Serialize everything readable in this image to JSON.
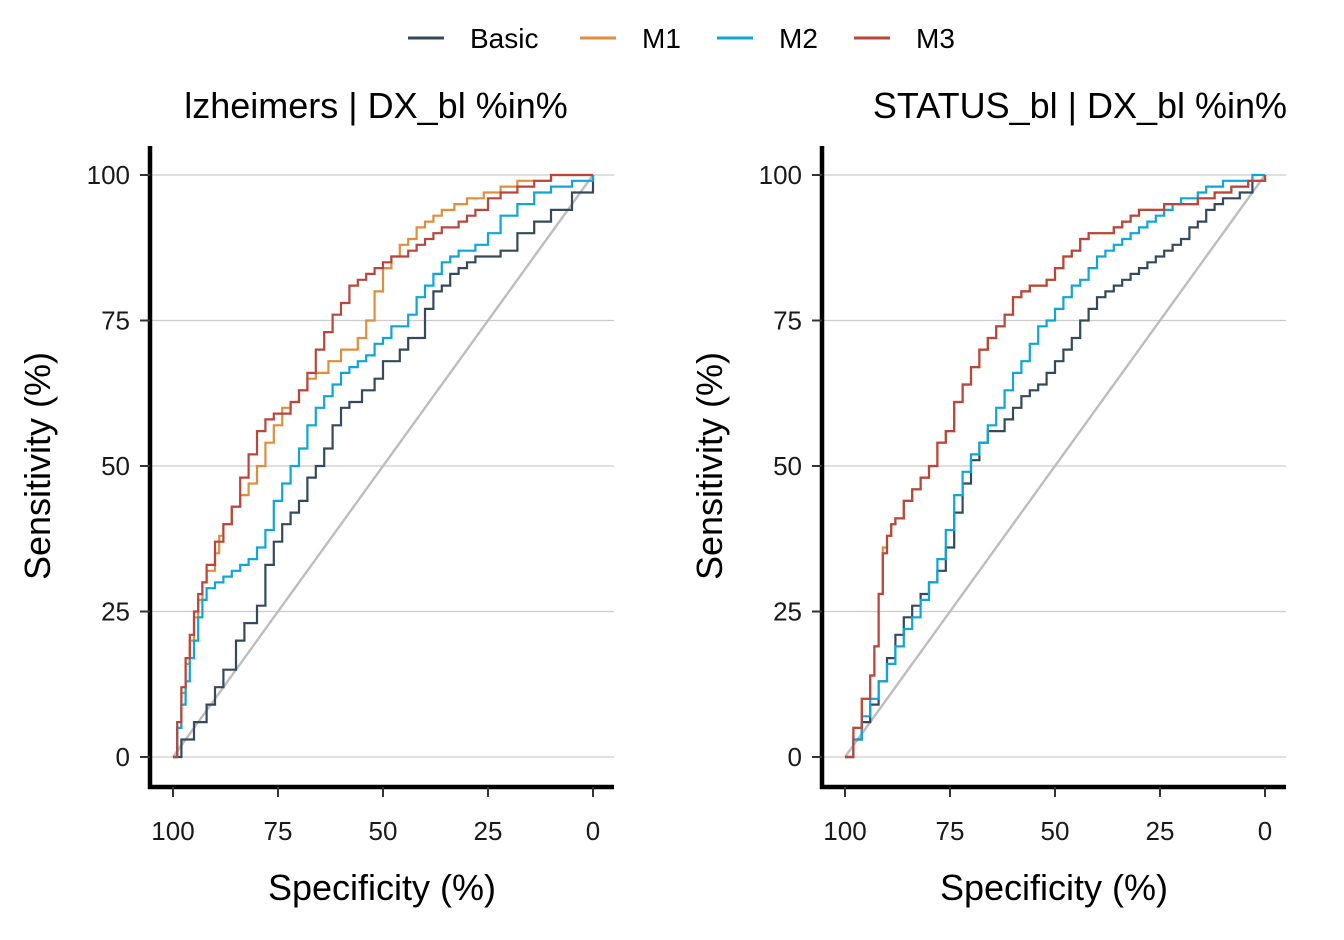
{
  "legend": {
    "items": [
      {
        "label": "Basic",
        "color": "#34495e"
      },
      {
        "label": "M1",
        "color": "#e08e3c"
      },
      {
        "label": "M2",
        "color": "#0ea5d8"
      },
      {
        "label": "M3",
        "color": "#b9453c"
      }
    ]
  },
  "chart_data": [
    {
      "type": "line",
      "title": "lzheimers | DX_bl %in%",
      "xlabel": "Specificity (%)",
      "ylabel": "Sensitivity (%)",
      "xlim": [
        100,
        0
      ],
      "ylim": [
        0,
        100
      ],
      "x_reversed": true,
      "xticks": [
        100,
        75,
        50,
        25,
        0
      ],
      "yticks": [
        0,
        25,
        50,
        75,
        100
      ],
      "grid": "horizontal",
      "reference_line": {
        "from": [
          100,
          0
        ],
        "to": [
          0,
          100
        ],
        "color": "#bdbdbd"
      },
      "series": [
        {
          "name": "Basic",
          "color": "#34495e",
          "x": [
            100,
            98,
            95,
            92,
            90,
            88,
            85,
            83,
            80,
            78,
            76,
            74,
            72,
            70,
            68,
            66,
            64,
            62,
            60,
            58,
            55,
            52,
            50,
            48,
            46,
            44,
            42,
            40,
            38,
            36,
            34,
            32,
            30,
            28,
            25,
            22,
            18,
            14,
            10,
            5,
            0
          ],
          "y": [
            0,
            3,
            6,
            9,
            12,
            15,
            20,
            23,
            26,
            33,
            37,
            40,
            42,
            44,
            48,
            50,
            53,
            57,
            60,
            61,
            63,
            65,
            68,
            68,
            70,
            72,
            72,
            77,
            80,
            81,
            83,
            84,
            85,
            86,
            86,
            87,
            90,
            92,
            94,
            97,
            100
          ]
        },
        {
          "name": "M1",
          "color": "#e08e3c",
          "x": [
            100,
            99,
            98,
            97,
            96,
            95,
            94,
            93,
            92,
            90,
            89,
            88,
            86,
            84,
            82,
            80,
            78,
            76,
            74,
            72,
            70,
            68,
            66,
            63,
            60,
            58,
            56,
            54,
            52,
            50,
            48,
            46,
            44,
            42,
            40,
            38,
            36,
            33,
            30,
            26,
            22,
            18,
            14,
            10,
            5,
            0
          ],
          "y": [
            0,
            5,
            11,
            16,
            20,
            24,
            27,
            30,
            32,
            35,
            38,
            40,
            43,
            45,
            47,
            50,
            54,
            57,
            60,
            61,
            63,
            65,
            66,
            68,
            70,
            70,
            72,
            75,
            80,
            84,
            86,
            88,
            89,
            91,
            92,
            93,
            94,
            95,
            96,
            97,
            98,
            99,
            99,
            100,
            100,
            100
          ]
        },
        {
          "name": "M2",
          "color": "#0ea5d8",
          "x": [
            100,
            99,
            98,
            97,
            96,
            95,
            94,
            93,
            92,
            90,
            88,
            86,
            84,
            82,
            80,
            78,
            76,
            74,
            72,
            70,
            68,
            66,
            64,
            62,
            60,
            58,
            56,
            54,
            52,
            50,
            48,
            46,
            44,
            42,
            40,
            38,
            36,
            34,
            32,
            30,
            28,
            25,
            22,
            18,
            14,
            10,
            5,
            0
          ],
          "y": [
            0,
            5,
            9,
            13,
            17,
            20,
            24,
            27,
            29,
            30,
            31,
            32,
            33,
            34,
            36,
            39,
            44,
            47,
            50,
            53,
            57,
            60,
            62,
            64,
            66,
            67,
            68,
            69,
            71,
            72,
            74,
            74,
            76,
            79,
            81,
            83,
            85,
            86,
            87,
            87,
            88,
            90,
            93,
            95,
            97,
            98,
            99,
            100
          ]
        },
        {
          "name": "M3",
          "color": "#b9453c",
          "x": [
            100,
            99,
            98,
            97,
            96,
            95,
            94,
            93,
            92,
            90,
            88,
            86,
            84,
            82,
            80,
            78,
            76,
            74,
            72,
            70,
            68,
            66,
            64,
            62,
            60,
            58,
            56,
            54,
            52,
            50,
            48,
            46,
            44,
            42,
            40,
            38,
            36,
            34,
            32,
            30,
            28,
            25,
            22,
            18,
            14,
            10,
            5,
            0
          ],
          "y": [
            0,
            6,
            12,
            17,
            21,
            25,
            28,
            30,
            33,
            37,
            40,
            43,
            48,
            52,
            56,
            58,
            59,
            59,
            61,
            63,
            66,
            70,
            73,
            76,
            78,
            81,
            82,
            83,
            84,
            85,
            86,
            86,
            87,
            88,
            89,
            90,
            91,
            91,
            92,
            93,
            94,
            96,
            97,
            98,
            99,
            100,
            100,
            100
          ]
        }
      ]
    },
    {
      "type": "line",
      "title": "STATUS_bl | DX_bl %in%",
      "xlabel": "Specificity (%)",
      "ylabel": "Sensitivity (%)",
      "xlim": [
        100,
        0
      ],
      "ylim": [
        0,
        100
      ],
      "x_reversed": true,
      "xticks": [
        100,
        75,
        50,
        25,
        0
      ],
      "yticks": [
        0,
        25,
        50,
        75,
        100
      ],
      "grid": "horizontal",
      "reference_line": {
        "from": [
          100,
          0
        ],
        "to": [
          0,
          100
        ],
        "color": "#bdbdbd"
      },
      "series": [
        {
          "name": "Basic",
          "color": "#34495e",
          "x": [
            100,
            98,
            96,
            94,
            92,
            90,
            88,
            86,
            84,
            82,
            80,
            78,
            76,
            74,
            72,
            70,
            68,
            66,
            64,
            62,
            60,
            58,
            56,
            54,
            52,
            50,
            48,
            46,
            44,
            42,
            40,
            38,
            36,
            34,
            32,
            30,
            28,
            26,
            24,
            22,
            20,
            18,
            16,
            14,
            12,
            10,
            6,
            3,
            0
          ],
          "y": [
            0,
            3,
            6,
            9,
            13,
            17,
            21,
            24,
            26,
            28,
            30,
            32,
            36,
            42,
            47,
            51,
            54,
            56,
            56,
            58,
            60,
            62,
            63,
            64,
            66,
            68,
            70,
            72,
            75,
            77,
            79,
            80,
            81,
            82,
            83,
            84,
            85,
            86,
            87,
            88,
            89,
            91,
            92,
            94,
            95,
            96,
            97,
            99,
            100
          ]
        },
        {
          "name": "M1",
          "color": "#e08e3c",
          "x": [
            100,
            98,
            96,
            94,
            93,
            92,
            91,
            90,
            89,
            88,
            86,
            84,
            82,
            80,
            78,
            76,
            74,
            72,
            70,
            68,
            66,
            64,
            62,
            60,
            58,
            56,
            54,
            52,
            50,
            48,
            46,
            44,
            42,
            40,
            38,
            36,
            34,
            32,
            30,
            27,
            24,
            20,
            16,
            12,
            8,
            4,
            0
          ],
          "y": [
            0,
            5,
            10,
            14,
            19,
            28,
            36,
            38,
            40,
            41,
            44,
            46,
            48,
            50,
            54,
            56,
            61,
            64,
            67,
            70,
            72,
            74,
            76,
            79,
            80,
            81,
            81,
            82,
            84,
            86,
            87,
            89,
            90,
            90,
            90,
            91,
            92,
            93,
            94,
            94,
            95,
            95,
            96,
            97,
            98,
            99,
            100
          ]
        },
        {
          "name": "M2",
          "color": "#0ea5d8",
          "x": [
            100,
            98,
            96,
            94,
            92,
            90,
            88,
            86,
            84,
            82,
            80,
            78,
            76,
            74,
            72,
            70,
            68,
            66,
            64,
            62,
            60,
            58,
            56,
            54,
            52,
            50,
            48,
            46,
            44,
            42,
            40,
            38,
            36,
            34,
            32,
            30,
            28,
            26,
            24,
            22,
            20,
            18,
            16,
            14,
            12,
            10,
            6,
            3,
            0
          ],
          "y": [
            0,
            3,
            7,
            10,
            13,
            16,
            19,
            22,
            24,
            27,
            30,
            34,
            39,
            45,
            49,
            52,
            54,
            57,
            60,
            63,
            66,
            68,
            71,
            74,
            75,
            77,
            79,
            81,
            82,
            84,
            86,
            87,
            88,
            89,
            90,
            91,
            92,
            93,
            94,
            95,
            96,
            96,
            97,
            98,
            98,
            99,
            99,
            100,
            100
          ]
        },
        {
          "name": "M3",
          "color": "#b9453c",
          "x": [
            100,
            98,
            96,
            94,
            93,
            92,
            91,
            90,
            89,
            88,
            86,
            84,
            82,
            80,
            78,
            76,
            74,
            72,
            70,
            68,
            66,
            64,
            62,
            60,
            58,
            56,
            54,
            52,
            50,
            48,
            46,
            44,
            42,
            40,
            38,
            36,
            34,
            32,
            30,
            27,
            24,
            20,
            16,
            12,
            8,
            4,
            0
          ],
          "y": [
            0,
            5,
            10,
            14,
            19,
            28,
            35,
            38,
            40,
            41,
            44,
            46,
            48,
            50,
            54,
            56,
            61,
            64,
            67,
            70,
            72,
            74,
            76,
            79,
            80,
            81,
            81,
            82,
            84,
            86,
            87,
            89,
            90,
            90,
            90,
            91,
            92,
            93,
            94,
            94,
            95,
            95,
            96,
            97,
            98,
            99,
            100
          ]
        }
      ]
    }
  ]
}
